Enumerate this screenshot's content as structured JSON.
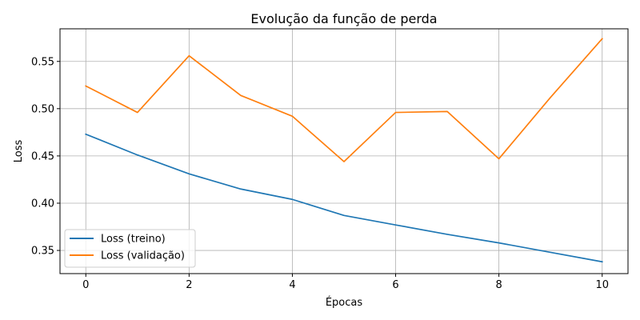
{
  "chart_data": {
    "type": "line",
    "title": "Evolução da função de perda",
    "xlabel": "Épocas",
    "ylabel": "Loss",
    "xlim": [
      -0.5,
      10.5
    ],
    "ylim": [
      0.3255,
      0.5845
    ],
    "xticks": [
      0,
      2,
      4,
      6,
      8,
      10
    ],
    "yticks": [
      0.35,
      0.4,
      0.45,
      0.5,
      0.55
    ],
    "ytick_labels": [
      "0.35",
      "0.40",
      "0.45",
      "0.50",
      "0.55"
    ],
    "grid": true,
    "legend_position": "lower-left",
    "x": [
      0,
      1,
      2,
      3,
      4,
      5,
      6,
      7,
      8,
      9,
      10
    ],
    "series": [
      {
        "name": "Loss (treino)",
        "color": "#1f77b4",
        "values": [
          0.473,
          0.451,
          0.431,
          0.415,
          0.404,
          0.387,
          0.377,
          0.367,
          0.358,
          0.348,
          0.338
        ]
      },
      {
        "name": "Loss (validação)",
        "color": "#ff7f0e",
        "values": [
          0.524,
          0.496,
          0.556,
          0.514,
          0.492,
          0.444,
          0.496,
          0.497,
          0.447,
          0.512,
          0.574
        ]
      }
    ]
  }
}
